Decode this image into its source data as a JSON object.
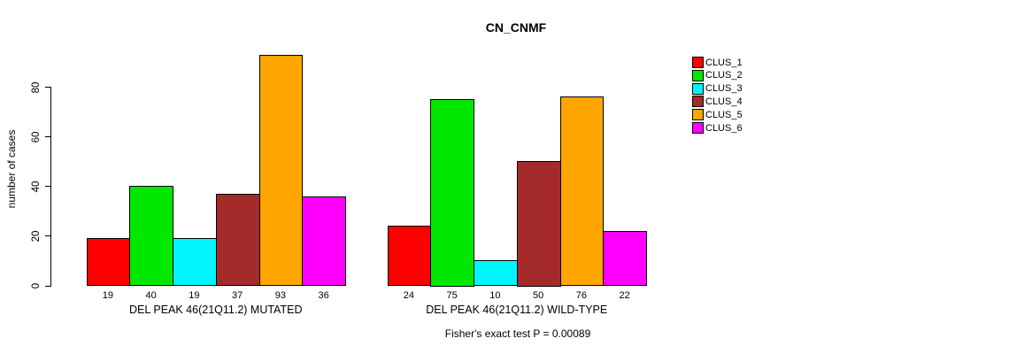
{
  "chart_data": {
    "type": "bar",
    "title": "CN_CNMF",
    "ylabel": "number of cases",
    "xlabel": "",
    "yticks": [
      0,
      20,
      40,
      60,
      80
    ],
    "ylim": [
      0,
      93
    ],
    "grid": false,
    "legend_position": "right",
    "series": [
      {
        "name": "CLUS_1",
        "color": "#FF0000"
      },
      {
        "name": "CLUS_2",
        "color": "#00E800"
      },
      {
        "name": "CLUS_3",
        "color": "#00F5FF"
      },
      {
        "name": "CLUS_4",
        "color": "#A52A2A"
      },
      {
        "name": "CLUS_5",
        "color": "#FFA500"
      },
      {
        "name": "CLUS_6",
        "color": "#FF00FF"
      }
    ],
    "groups": [
      {
        "label": "DEL PEAK 46(21Q11.2) MUTATED",
        "values": [
          19,
          40,
          19,
          37,
          93,
          36
        ]
      },
      {
        "label": "DEL PEAK 46(21Q11.2) WILD-TYPE",
        "values": [
          24,
          75,
          10,
          50,
          76,
          22
        ]
      }
    ],
    "annotation": "Fisher's exact test P = 0.00089",
    "colors": {
      "axis": "#000000",
      "text": "#000000",
      "background": "#FFFFFF"
    }
  }
}
